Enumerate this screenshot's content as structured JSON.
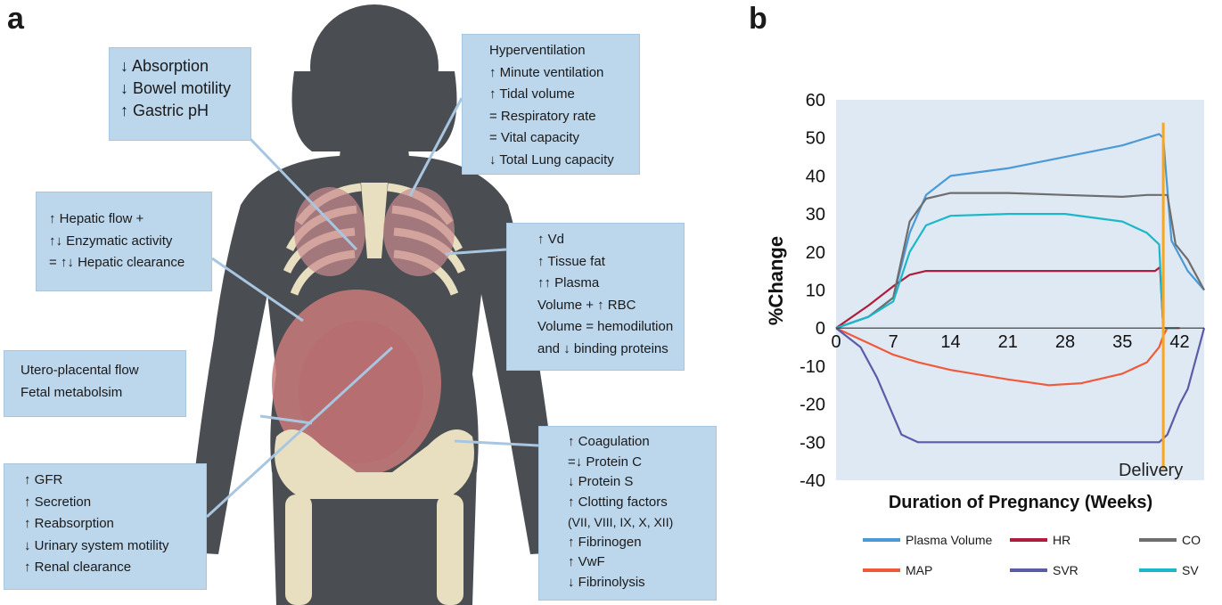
{
  "panels": {
    "a": "a",
    "b": "b"
  },
  "boxes": {
    "gi": [
      "↓ Absorption",
      "↓ Bowel motility",
      "↑ Gastric pH"
    ],
    "resp": [
      "Hyperventilation",
      "↑ Minute ventilation",
      "↑ Tidal volume",
      "= Respiratory rate",
      "= Vital capacity",
      "↓ Total Lung capacity"
    ],
    "hepatic": [
      "↑ Hepatic flow +",
      "↑↓ Enzymatic activity",
      "= ↑↓ Hepatic clearance"
    ],
    "vd": [
      "↑ Vd",
      "↑ Tissue fat",
      "↑↑ Plasma",
      "Volume + ↑ RBC",
      "Volume = hemodilution",
      "and ↓ binding proteins"
    ],
    "utero": [
      "Utero-placental flow",
      "Fetal metabolsim"
    ],
    "coag": [
      "↑ Coagulation",
      "=↓ Protein C",
      "↓ Protein S",
      "↑ Clotting factors",
      "(VII, VIII, IX, X, XII)",
      "↑ Fibrinogen",
      "↑ VwF",
      "↓ Fibrinolysis"
    ],
    "renal": [
      "↑ GFR",
      "↑ Secretion",
      "↑ Reabsorption",
      "↓ Urinary system motility",
      "↑ Renal clearance"
    ]
  },
  "chart_data": {
    "type": "line",
    "xlabel": "Duration of Pregnancy (Weeks)",
    "ylabel": "%Change",
    "xlim": [
      0,
      45
    ],
    "ylim": [
      -40,
      60
    ],
    "xticks": [
      0,
      7,
      14,
      21,
      28,
      35,
      42
    ],
    "yticks": [
      60,
      50,
      40,
      30,
      20,
      10,
      0,
      -10,
      -20,
      -30,
      -40
    ],
    "annotation": {
      "label": "Delivery",
      "x": 40
    },
    "series": [
      {
        "name": "Plasma Volume",
        "color": "#4a9ad8",
        "points": [
          [
            0,
            0
          ],
          [
            4,
            3
          ],
          [
            7,
            8
          ],
          [
            9,
            25
          ],
          [
            11,
            35
          ],
          [
            14,
            40
          ],
          [
            21,
            42
          ],
          [
            28,
            45
          ],
          [
            35,
            48
          ],
          [
            39.5,
            51
          ],
          [
            40,
            50
          ],
          [
            41,
            23
          ],
          [
            43,
            15
          ],
          [
            45,
            10
          ]
        ]
      },
      {
        "name": "HR",
        "color": "#b01c3c",
        "points": [
          [
            0,
            0
          ],
          [
            4,
            6
          ],
          [
            7,
            11
          ],
          [
            9,
            14
          ],
          [
            11,
            15
          ],
          [
            21,
            15
          ],
          [
            28,
            15
          ],
          [
            35,
            15
          ],
          [
            39,
            15
          ],
          [
            39.6,
            16
          ],
          [
            40,
            0
          ],
          [
            41,
            0
          ],
          [
            42,
            0
          ]
        ]
      },
      {
        "name": "CO",
        "color": "#6e6e6e",
        "points": [
          [
            0,
            0
          ],
          [
            4,
            3
          ],
          [
            7,
            8
          ],
          [
            9,
            28
          ],
          [
            11,
            34
          ],
          [
            14,
            35.5
          ],
          [
            21,
            35.5
          ],
          [
            28,
            35
          ],
          [
            35,
            34.5
          ],
          [
            38,
            35
          ],
          [
            40.5,
            35
          ],
          [
            41.5,
            22
          ],
          [
            43,
            18
          ],
          [
            45,
            10
          ]
        ]
      },
      {
        "name": "MAP",
        "color": "#f05a3a",
        "points": [
          [
            0,
            0
          ],
          [
            4,
            -4
          ],
          [
            7,
            -7
          ],
          [
            10,
            -9
          ],
          [
            14,
            -11
          ],
          [
            21,
            -13.5
          ],
          [
            26,
            -15
          ],
          [
            30,
            -14.5
          ],
          [
            35,
            -12
          ],
          [
            38,
            -9
          ],
          [
            39.5,
            -5
          ],
          [
            40,
            -2
          ],
          [
            40.5,
            0
          ],
          [
            41,
            0
          ],
          [
            42,
            0
          ]
        ]
      },
      {
        "name": "SVR",
        "color": "#5b5ba8",
        "points": [
          [
            0,
            0
          ],
          [
            3,
            -5
          ],
          [
            5,
            -13
          ],
          [
            7,
            -23
          ],
          [
            8,
            -28
          ],
          [
            10,
            -30
          ],
          [
            14,
            -30
          ],
          [
            21,
            -30
          ],
          [
            28,
            -30
          ],
          [
            35,
            -30
          ],
          [
            39.5,
            -30
          ],
          [
            40.5,
            -28
          ],
          [
            42,
            -20
          ],
          [
            43,
            -16
          ],
          [
            45,
            0
          ]
        ]
      },
      {
        "name": "SV",
        "color": "#1cb8c8",
        "points": [
          [
            0,
            0
          ],
          [
            4,
            3
          ],
          [
            7,
            7
          ],
          [
            9,
            20
          ],
          [
            11,
            27
          ],
          [
            14,
            29.5
          ],
          [
            21,
            30
          ],
          [
            28,
            30
          ],
          [
            35,
            28
          ],
          [
            38,
            25
          ],
          [
            39.5,
            22
          ],
          [
            40,
            0
          ],
          [
            40.5,
            0
          ],
          [
            41.5,
            0
          ]
        ]
      }
    ],
    "legend": "bottom"
  }
}
